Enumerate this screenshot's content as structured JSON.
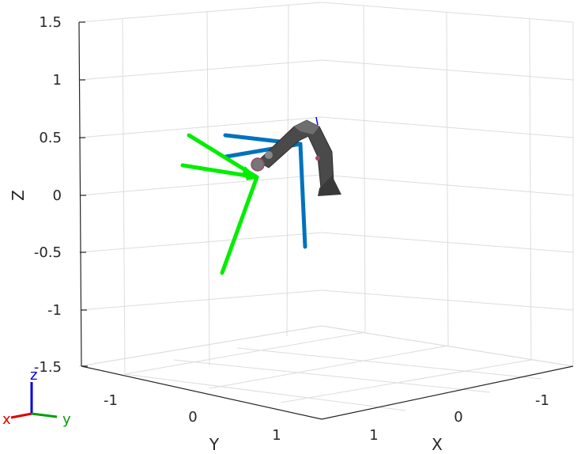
{
  "chart_data": {
    "type": "3d-scene",
    "axes": {
      "x": {
        "label": "X",
        "ticks": [
          "1",
          "0",
          "-1"
        ]
      },
      "y": {
        "label": "Y",
        "ticks": [
          "-1",
          "0",
          "1"
        ]
      },
      "z": {
        "label": "Z",
        "ticks": [
          "1.5",
          "1",
          "0.5",
          "0",
          "-0.5",
          "-1",
          "-1.5"
        ]
      }
    },
    "grid": true,
    "colors": {
      "blue_frame": "#0072bd",
      "green_frame": "#00ee00",
      "robot": "#4a4a4a",
      "triad_x": "#e00000",
      "triad_y": "#00a000",
      "triad_z": "#0000e0"
    },
    "orientation_triad": {
      "x_label": "x",
      "y_label": "y",
      "z_label": "z"
    }
  }
}
